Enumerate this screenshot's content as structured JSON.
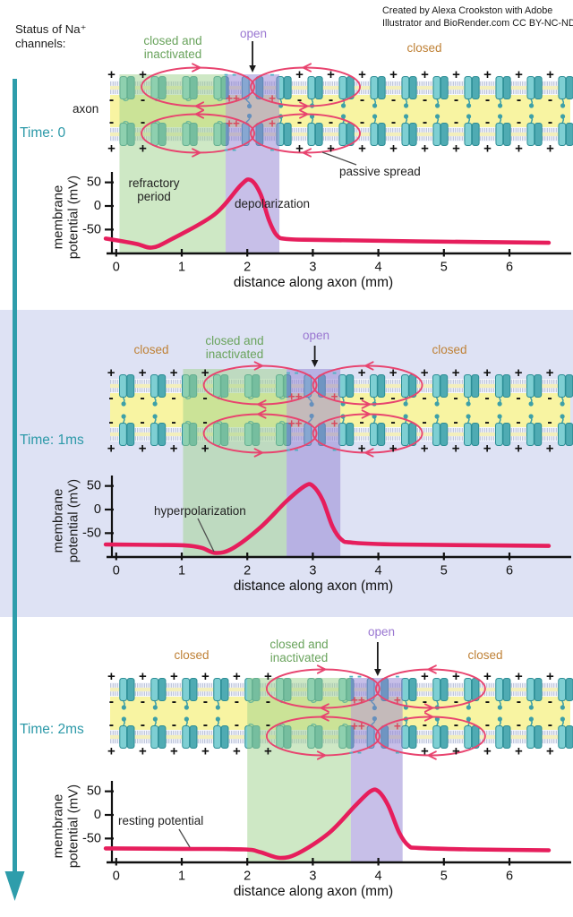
{
  "header": {
    "status_line1": "Status of Na⁺",
    "status_line2": "channels:",
    "credit_line1": "Created by Alexa Crookston with Adobe",
    "credit_line2": "Illustrator and BioRender.com CC BY-NC-ND"
  },
  "colors": {
    "teal_arrow": "#2e9dab",
    "curve": "#e61e5c",
    "loop": "#e8446f",
    "green_label": "#69a35c",
    "orange_label": "#bf8136",
    "purple_label": "#9a77d1",
    "yellow_interior": "#f8f4a2",
    "membrane_mid": "#f3efbc",
    "green_overlay": "rgba(158,210,140,0.5)",
    "purple_overlay": "rgba(144,128,210,0.5)",
    "panel2_bg": "#dee2f4",
    "membrane_base": "#f5f7fd",
    "membrane_hatch": "#aab3cf",
    "channel_left": "#7ecfd3",
    "channel_right": "#4fabb3",
    "channel_dark": "#2c8d95",
    "channel_tail": "#3da0a8",
    "plus_red": "#d84a5f",
    "minus_teal": "#4fb0c1",
    "axis_black": "#111111"
  },
  "charges": {
    "plus": "+",
    "minus": "-",
    "double_plus": "++",
    "double_minus": "- -"
  },
  "panels": [
    {
      "time_label": "Time: 0",
      "labels": {
        "closed_inactivated": "closed and inactivated",
        "open": "open",
        "closed_right": "closed"
      },
      "axon_label": "axon",
      "annotations": {
        "refractory": "refractory period",
        "depolarization": "depolarization",
        "passive_spread": "passive spread"
      },
      "ylabel_line1": "membrane",
      "ylabel_line2": "potential (mV)",
      "xlabel": "distance along axon (mm)"
    },
    {
      "time_label": "Time: 1ms",
      "labels": {
        "closed_left": "closed",
        "closed_inactivated": "closed and inactivated",
        "open": "open",
        "closed_right": "closed"
      },
      "annotations": {
        "hyperpolarization": "hyperpolarization"
      },
      "ylabel_line1": "membrane",
      "ylabel_line2": "potential (mV)",
      "xlabel": "distance along axon (mm)"
    },
    {
      "time_label": "Time: 2ms",
      "labels": {
        "closed_left": "closed",
        "closed_inactivated": "closed and inactivated",
        "open": "open",
        "closed_right": "closed"
      },
      "annotations": {
        "resting_potential": "resting potential"
      },
      "ylabel_line1": "membrane",
      "ylabel_line2": "potential (mV)",
      "xlabel": "distance along axon (mm)"
    }
  ],
  "chart_data": [
    {
      "type": "line",
      "title": "Time: 0",
      "xlabel": "distance along axon (mm)",
      "ylabel": "membrane potential (mV)",
      "xlim": [
        0,
        6.6
      ],
      "ylim": [
        -100,
        75
      ],
      "xticks": [
        0,
        1,
        2,
        3,
        4,
        5,
        6
      ],
      "yticks": [
        50,
        0,
        -50
      ],
      "regions": {
        "closed_inactivated_mm": [
          0.05,
          1.67
        ],
        "open_mm": [
          1.67,
          2.49
        ],
        "open_channel_mm": 2.08
      },
      "series": [
        {
          "name": "membrane potential",
          "points": [
            [
              -0.16,
              -69
            ],
            [
              0.3,
              -80
            ],
            [
              0.55,
              -88
            ],
            [
              0.85,
              -70
            ],
            [
              1.5,
              -18
            ],
            [
              1.9,
              44
            ],
            [
              2.05,
              55
            ],
            [
              2.2,
              26
            ],
            [
              2.33,
              -30
            ],
            [
              2.45,
              -62
            ],
            [
              2.6,
              -70
            ],
            [
              3.1,
              -72
            ],
            [
              4.6,
              -75
            ],
            [
              6.6,
              -78
            ]
          ]
        }
      ]
    },
    {
      "type": "line",
      "title": "Time: 1ms",
      "xlabel": "distance along axon (mm)",
      "ylabel": "membrane potential (mV)",
      "xlim": [
        0,
        6.6
      ],
      "ylim": [
        -100,
        75
      ],
      "xticks": [
        0,
        1,
        2,
        3,
        4,
        5,
        6
      ],
      "yticks": [
        50,
        0,
        -50
      ],
      "regions": {
        "closed_left_mm": [
          0,
          1.02
        ],
        "closed_inactivated_mm": [
          1.02,
          2.6
        ],
        "open_mm": [
          2.6,
          3.42
        ],
        "open_channel_mm": 3.03
      },
      "series": [
        {
          "name": "membrane potential",
          "points": [
            [
              -0.16,
              -74
            ],
            [
              0.6,
              -75
            ],
            [
              1.05,
              -76
            ],
            [
              1.3,
              -81
            ],
            [
              1.52,
              -92
            ],
            [
              1.78,
              -82
            ],
            [
              2.2,
              -38
            ],
            [
              2.6,
              18
            ],
            [
              2.88,
              50
            ],
            [
              3.0,
              50
            ],
            [
              3.15,
              20
            ],
            [
              3.3,
              -36
            ],
            [
              3.44,
              -64
            ],
            [
              3.6,
              -70
            ],
            [
              4.3,
              -74
            ],
            [
              6.6,
              -77
            ]
          ]
        }
      ]
    },
    {
      "type": "line",
      "title": "Time: 2ms",
      "xlabel": "distance along axon (mm)",
      "ylabel": "membrane potential (mV)",
      "xlim": [
        0,
        6.6
      ],
      "ylim": [
        -100,
        75
      ],
      "xticks": [
        0,
        1,
        2,
        3,
        4,
        5,
        6
      ],
      "yticks": [
        50,
        0,
        -50
      ],
      "regions": {
        "closed_left_mm": [
          0,
          2.0
        ],
        "closed_inactivated_mm": [
          2.0,
          3.58
        ],
        "open_mm": [
          3.58,
          4.37
        ],
        "open_channel_mm": 3.99
      },
      "series": [
        {
          "name": "membrane potential",
          "points": [
            [
              -0.16,
              -71
            ],
            [
              1.0,
              -72
            ],
            [
              1.95,
              -73
            ],
            [
              2.2,
              -79
            ],
            [
              2.5,
              -91
            ],
            [
              2.78,
              -81
            ],
            [
              3.25,
              -38
            ],
            [
              3.65,
              20
            ],
            [
              3.88,
              50
            ],
            [
              4.0,
              50
            ],
            [
              4.15,
              20
            ],
            [
              4.32,
              -38
            ],
            [
              4.46,
              -65
            ],
            [
              4.62,
              -70
            ],
            [
              5.4,
              -73
            ],
            [
              6.6,
              -75
            ]
          ]
        }
      ]
    }
  ]
}
